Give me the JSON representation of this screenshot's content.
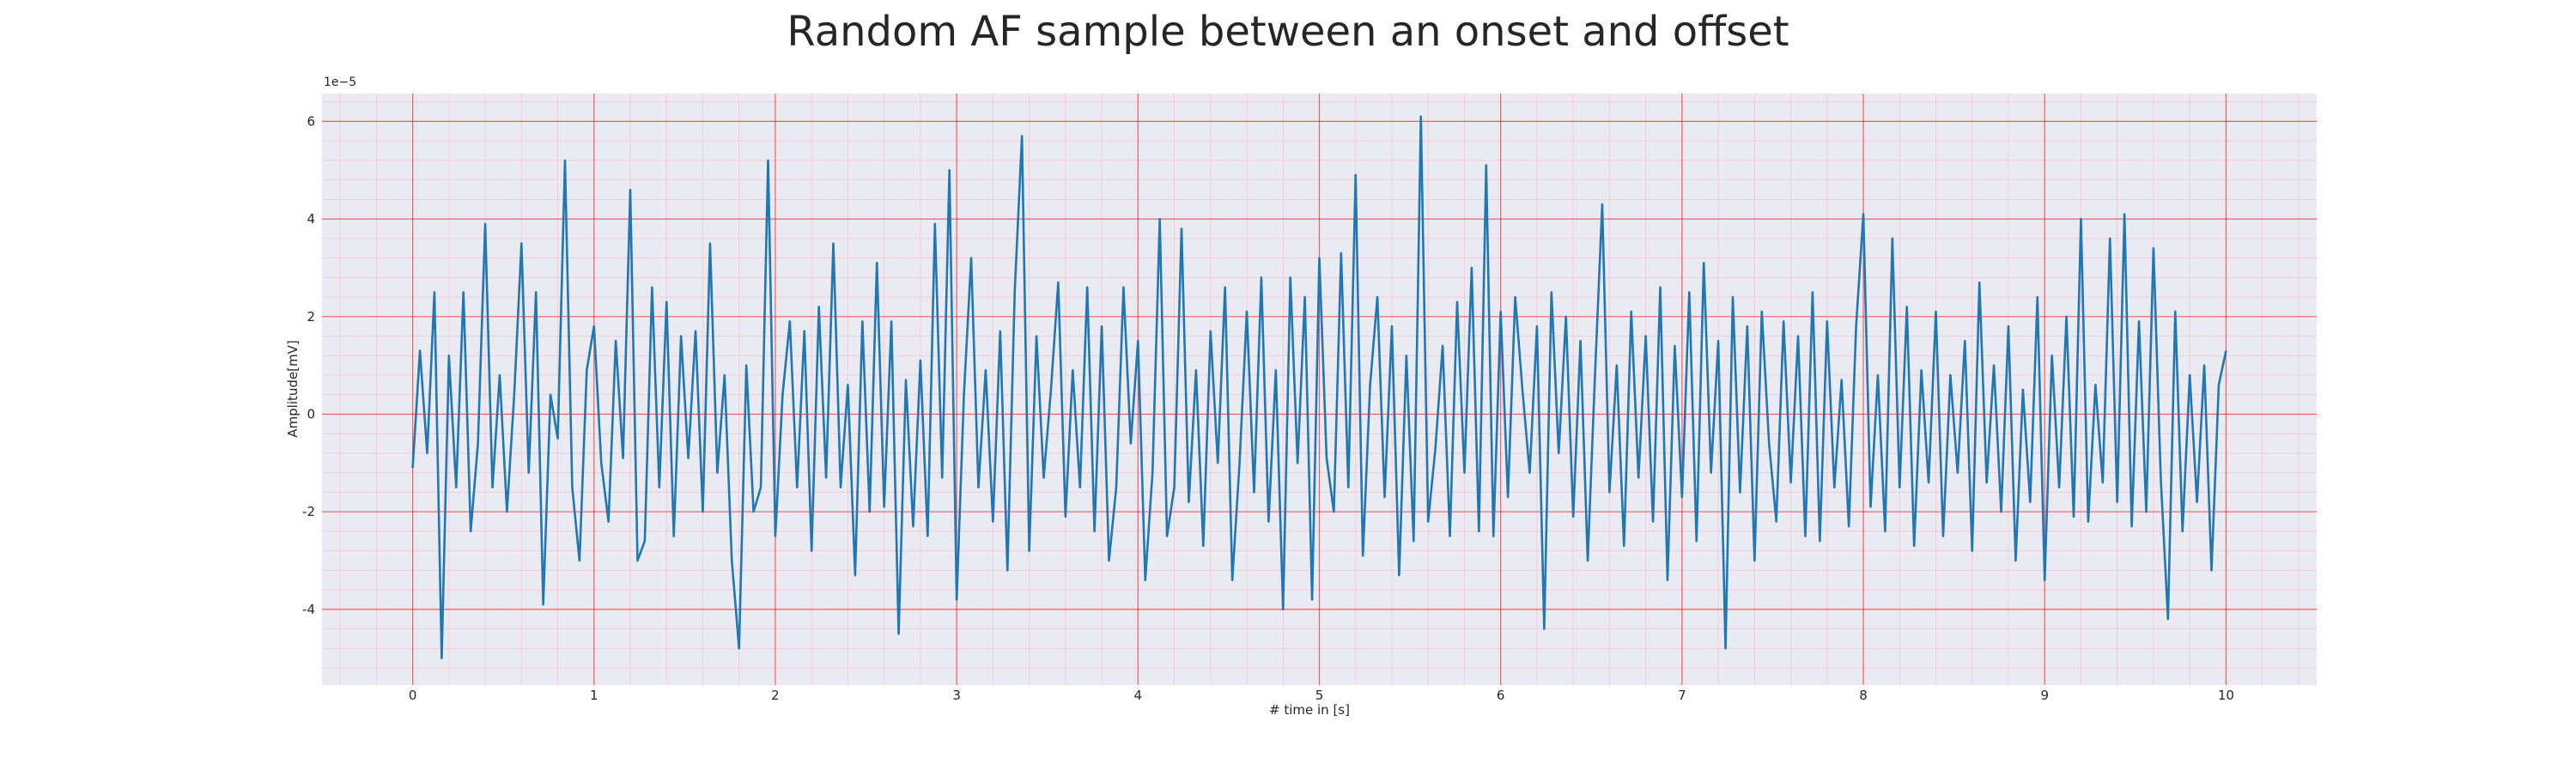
{
  "chart_data": {
    "type": "line",
    "title": "Random AF sample between an onset and offset",
    "xlabel": "# time in [s]",
    "ylabel": "Amplitude[mV]",
    "y_offset_label": "1e−5",
    "xlim": [
      -0.5,
      10.5
    ],
    "ylim": [
      -5.55,
      6.57
    ],
    "xticks": [
      0,
      1,
      2,
      3,
      4,
      5,
      6,
      7,
      8,
      9,
      10
    ],
    "yticks": [
      -4,
      -2,
      0,
      2,
      4,
      6
    ],
    "grid": true,
    "minor_grid": true,
    "grid_color": "#ff0000",
    "background": "#eaeaf2",
    "x": [
      0,
      0.04,
      0.08,
      0.12,
      0.16,
      0.2,
      0.24,
      0.28,
      0.32,
      0.36,
      0.4,
      0.44,
      0.48,
      0.52,
      0.56,
      0.6,
      0.64,
      0.68,
      0.72,
      0.76,
      0.8,
      0.84,
      0.88,
      0.92,
      0.96,
      1,
      1.04,
      1.08,
      1.12,
      1.16,
      1.2,
      1.24,
      1.28,
      1.32,
      1.36,
      1.4,
      1.44,
      1.48,
      1.52,
      1.56,
      1.6,
      1.64,
      1.68,
      1.72,
      1.76,
      1.8,
      1.84,
      1.88,
      1.92,
      1.96,
      2,
      2.04,
      2.08,
      2.12,
      2.16,
      2.2,
      2.24,
      2.28,
      2.32,
      2.36,
      2.4,
      2.44,
      2.48,
      2.52,
      2.56,
      2.6,
      2.64,
      2.68,
      2.72,
      2.76,
      2.8,
      2.84,
      2.88,
      2.92,
      2.96,
      3,
      3.04,
      3.08,
      3.12,
      3.16,
      3.2,
      3.24,
      3.28,
      3.32,
      3.36,
      3.4,
      3.44,
      3.48,
      3.52,
      3.56,
      3.6,
      3.64,
      3.68,
      3.72,
      3.76,
      3.8,
      3.84,
      3.88,
      3.92,
      3.96,
      4,
      4.04,
      4.08,
      4.12,
      4.16,
      4.2,
      4.24,
      4.28,
      4.32,
      4.36,
      4.4,
      4.44,
      4.48,
      4.52,
      4.56,
      4.6,
      4.64,
      4.68,
      4.72,
      4.76,
      4.8,
      4.84,
      4.88,
      4.92,
      4.96,
      5,
      5.04,
      5.08,
      5.12,
      5.16,
      5.2,
      5.24,
      5.28,
      5.32,
      5.36,
      5.4,
      5.44,
      5.48,
      5.52,
      5.56,
      5.6,
      5.64,
      5.68,
      5.72,
      5.76,
      5.8,
      5.84,
      5.88,
      5.92,
      5.96,
      6,
      6.04,
      6.08,
      6.12,
      6.16,
      6.2,
      6.24,
      6.28,
      6.32,
      6.36,
      6.4,
      6.44,
      6.48,
      6.52,
      6.56,
      6.6,
      6.64,
      6.68,
      6.72,
      6.76,
      6.8,
      6.84,
      6.88,
      6.92,
      6.96,
      7,
      7.04,
      7.08,
      7.12,
      7.16,
      7.2,
      7.24,
      7.28,
      7.32,
      7.36,
      7.4,
      7.44,
      7.48,
      7.52,
      7.56,
      7.6,
      7.64,
      7.68,
      7.72,
      7.76,
      7.8,
      7.84,
      7.88,
      7.92,
      7.96,
      8,
      8.04,
      8.08,
      8.12,
      8.16,
      8.2,
      8.24,
      8.28,
      8.32,
      8.36,
      8.4,
      8.44,
      8.48,
      8.52,
      8.56,
      8.6,
      8.64,
      8.68,
      8.72,
      8.76,
      8.8,
      8.84,
      8.88,
      8.92,
      8.96,
      9,
      9.04,
      9.08,
      9.12,
      9.16,
      9.2,
      9.24,
      9.28,
      9.32,
      9.36,
      9.4,
      9.44,
      9.48,
      9.52,
      9.56,
      9.6,
      9.64,
      9.68,
      9.72,
      9.76,
      9.8,
      9.84,
      9.88,
      9.92,
      9.96,
      10
    ],
    "series": [
      {
        "color": "#1f77b4",
        "values": [
          -1.1,
          1.3,
          -0.8,
          2.5,
          -5.0,
          1.2,
          -1.5,
          2.5,
          -2.4,
          -0.6,
          3.9,
          -1.5,
          0.8,
          -2.0,
          0.4,
          3.5,
          -1.2,
          2.5,
          -3.9,
          0.4,
          -0.5,
          5.2,
          -1.5,
          -3.0,
          0.9,
          1.8,
          -1.0,
          -2.2,
          1.5,
          -0.9,
          4.6,
          -3.0,
          -2.6,
          2.6,
          -1.5,
          2.3,
          -2.5,
          1.6,
          -0.9,
          1.7,
          -2.0,
          3.5,
          -1.2,
          0.8,
          -3.0,
          -4.8,
          1.0,
          -2.0,
          -1.5,
          5.2,
          -2.5,
          0.4,
          1.9,
          -1.5,
          1.7,
          -2.8,
          2.2,
          -1.3,
          3.5,
          -1.5,
          0.6,
          -3.3,
          1.9,
          -2.0,
          3.1,
          -1.9,
          1.9,
          -4.5,
          0.7,
          -2.3,
          1.1,
          -2.5,
          3.9,
          -1.3,
          5.0,
          -3.8,
          0.4,
          3.2,
          -1.5,
          0.9,
          -2.2,
          1.7,
          -3.2,
          2.5,
          5.7,
          -2.8,
          1.6,
          -1.3,
          0.5,
          2.7,
          -2.1,
          0.9,
          -1.5,
          2.6,
          -2.4,
          1.8,
          -3.0,
          -1.5,
          2.6,
          -0.6,
          1.5,
          -3.4,
          -1.2,
          4.0,
          -2.5,
          -1.5,
          3.8,
          -1.8,
          0.9,
          -2.7,
          1.7,
          -1.0,
          2.6,
          -3.4,
          -1.0,
          2.1,
          -1.6,
          2.8,
          -2.2,
          0.9,
          -4.0,
          2.8,
          -1.0,
          2.4,
          -3.8,
          3.2,
          -0.9,
          -2.0,
          3.3,
          -1.5,
          4.9,
          -2.9,
          0.6,
          2.4,
          -1.7,
          1.8,
          -3.3,
          1.2,
          -2.6,
          6.1,
          -2.2,
          -0.7,
          1.4,
          -2.5,
          2.3,
          -1.2,
          3.0,
          -2.4,
          5.1,
          -2.5,
          2.1,
          -1.7,
          2.4,
          0.5,
          -1.2,
          1.8,
          -4.4,
          2.5,
          -0.8,
          2.0,
          -2.1,
          1.5,
          -3.0,
          0.8,
          4.3,
          -1.6,
          1.0,
          -2.7,
          2.1,
          -1.3,
          1.6,
          -2.2,
          2.6,
          -3.4,
          1.4,
          -1.7,
          2.5,
          -2.6,
          3.1,
          -1.2,
          1.5,
          -4.8,
          2.4,
          -1.6,
          1.8,
          -3.0,
          2.1,
          -0.6,
          -2.2,
          1.9,
          -1.4,
          1.6,
          -2.5,
          2.5,
          -2.6,
          1.9,
          -1.5,
          0.7,
          -2.3,
          1.8,
          4.1,
          -1.9,
          0.8,
          -2.4,
          3.6,
          -1.5,
          2.2,
          -2.7,
          0.9,
          -1.4,
          2.1,
          -2.5,
          0.8,
          -1.2,
          1.5,
          -2.8,
          2.7,
          -1.4,
          1.0,
          -2.0,
          1.8,
          -3.0,
          0.5,
          -1.8,
          2.4,
          -3.4,
          1.2,
          -1.5,
          2.0,
          -2.1,
          4.0,
          -2.2,
          0.6,
          -1.4,
          3.6,
          -1.8,
          4.1,
          -2.3,
          1.9,
          -2.0,
          3.4,
          -1.3,
          -4.2,
          2.1,
          -2.4,
          0.8,
          -1.8,
          1.0,
          -3.2,
          0.6,
          1.3
        ]
      }
    ]
  }
}
